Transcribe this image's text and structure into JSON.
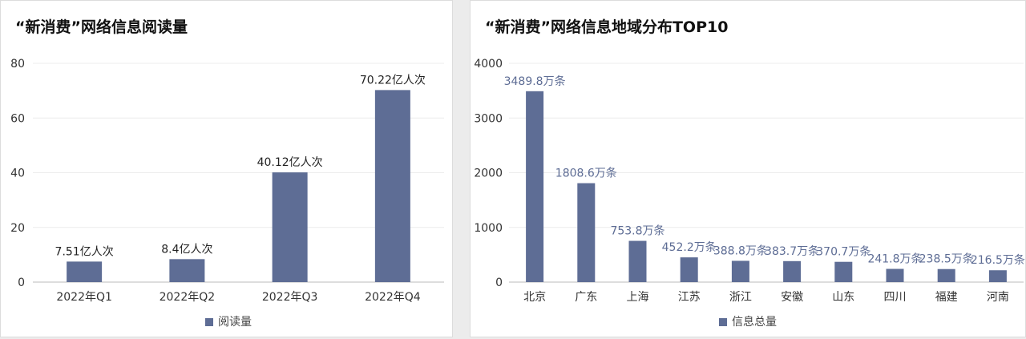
{
  "chart_data": [
    {
      "type": "bar",
      "title": "“新消费”网络信息阅读量",
      "categories": [
        "2022年Q1",
        "2022年Q2",
        "2022年Q3",
        "2022年Q4"
      ],
      "series": [
        {
          "name": "阅读量",
          "values": [
            7.51,
            8.4,
            40.12,
            70.22
          ]
        }
      ],
      "data_labels": [
        "7.51亿人次",
        "8.4亿人次",
        "40.12亿人次",
        "70.22亿人次"
      ],
      "ylim": [
        0,
        80
      ],
      "yticks": [
        0,
        20,
        40,
        60,
        80
      ],
      "grid": true,
      "legend_position": "bottom",
      "bar_color": "#5e6d95",
      "label_color": "#222222"
    },
    {
      "type": "bar",
      "title": "“新消费”网络信息地域分布TOP10",
      "categories": [
        "北京",
        "广东",
        "上海",
        "江苏",
        "浙江",
        "安徽",
        "山东",
        "四川",
        "福建",
        "河南"
      ],
      "series": [
        {
          "name": "信息总量",
          "values": [
            3489.8,
            1808.6,
            753.8,
            452.2,
            388.8,
            383.7,
            370.7,
            241.8,
            238.5,
            216.5
          ]
        }
      ],
      "data_labels": [
        "3489.8万条",
        "1808.6万条",
        "753.8万条",
        "452.2万条",
        "388.8万条",
        "383.7万条",
        "370.7万条",
        "241.8万条",
        "238.5万条",
        "216.5万条"
      ],
      "ylim": [
        0,
        4000
      ],
      "yticks": [
        0,
        1000,
        2000,
        3000,
        4000
      ],
      "grid": true,
      "legend_position": "bottom",
      "bar_color": "#5e6d95",
      "label_color": "#5e6d95"
    }
  ]
}
